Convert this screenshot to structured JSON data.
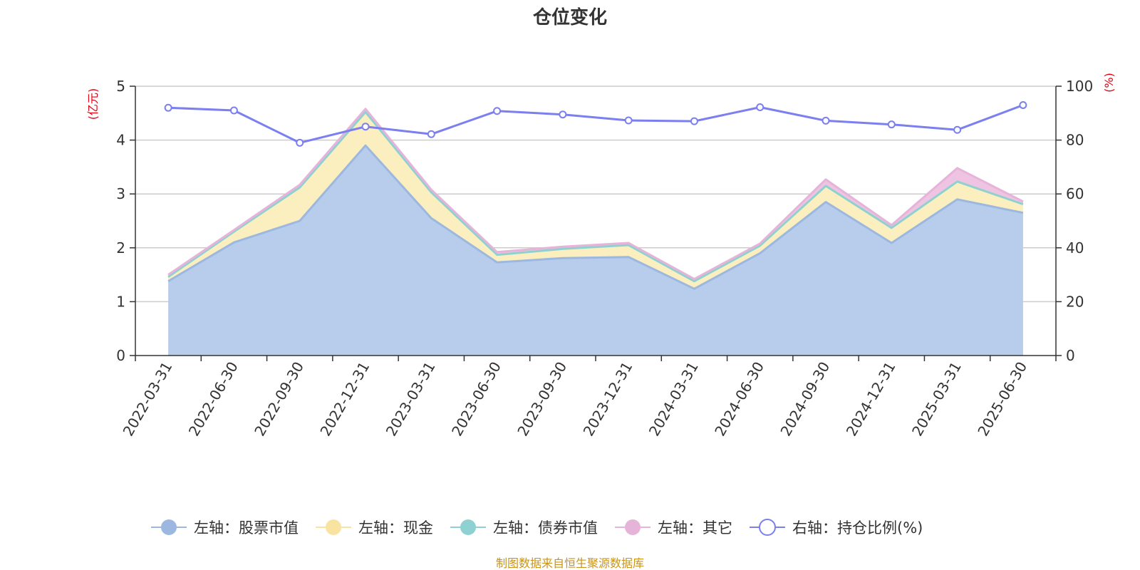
{
  "chart_data": {
    "type": "area",
    "title": "仓位变化",
    "categories": [
      "2022-03-31",
      "2022-06-30",
      "2022-09-30",
      "2022-12-31",
      "2023-03-31",
      "2023-06-30",
      "2023-09-30",
      "2023-12-31",
      "2024-03-31",
      "2024-06-30",
      "2024-09-30",
      "2024-12-31",
      "2025-03-31",
      "2025-06-30"
    ],
    "left_axis": {
      "unit": "(亿元)",
      "ylim": [
        0,
        5
      ],
      "ticks": [
        "0",
        "1",
        "2",
        "3",
        "4",
        "5"
      ]
    },
    "right_axis": {
      "unit": "(%)",
      "ylim": [
        0,
        100
      ],
      "ticks": [
        "0",
        "20",
        "40",
        "60",
        "80",
        "100"
      ]
    },
    "grid": true,
    "stacked": true,
    "series": [
      {
        "name": "左轴：股票市值",
        "axis": "left",
        "color": "#9cb8e0",
        "fill": "#b8cdeb",
        "values": [
          1.38,
          2.1,
          2.5,
          3.9,
          2.55,
          1.73,
          1.81,
          1.83,
          1.24,
          1.9,
          2.85,
          2.09,
          2.9,
          2.65
        ]
      },
      {
        "name": "左轴：现金",
        "axis": "left",
        "color": "#f8e4a0",
        "fill": "#fcefbf",
        "values": [
          0.08,
          0.2,
          0.62,
          0.62,
          0.48,
          0.14,
          0.17,
          0.22,
          0.14,
          0.14,
          0.3,
          0.28,
          0.33,
          0.16
        ]
      },
      {
        "name": "左轴：债券市值",
        "axis": "left",
        "color": "#8fd1d3",
        "fill": "#a9dcde",
        "values": [
          0,
          0,
          0,
          0,
          0,
          0,
          0,
          0,
          0,
          0,
          0,
          0,
          0,
          0
        ]
      },
      {
        "name": "左轴：其它",
        "axis": "left",
        "color": "#e6b3d9",
        "fill": "#eec4e2",
        "values": [
          0.04,
          0.03,
          0.05,
          0.06,
          0.05,
          0.05,
          0.04,
          0.04,
          0.04,
          0.04,
          0.12,
          0.05,
          0.25,
          0.05
        ]
      },
      {
        "name": "右轴：持仓比例(%)",
        "axis": "right",
        "color": "#7b7fef",
        "type": "line",
        "values": [
          92.0,
          91.0,
          79.0,
          85.0,
          82.2,
          90.8,
          89.5,
          87.3,
          87.0,
          92.2,
          87.2,
          85.8,
          83.8,
          93.0
        ]
      }
    ],
    "legend_position": "bottom"
  },
  "footer": {
    "source": "制图数据来自恒生聚源数据库"
  }
}
